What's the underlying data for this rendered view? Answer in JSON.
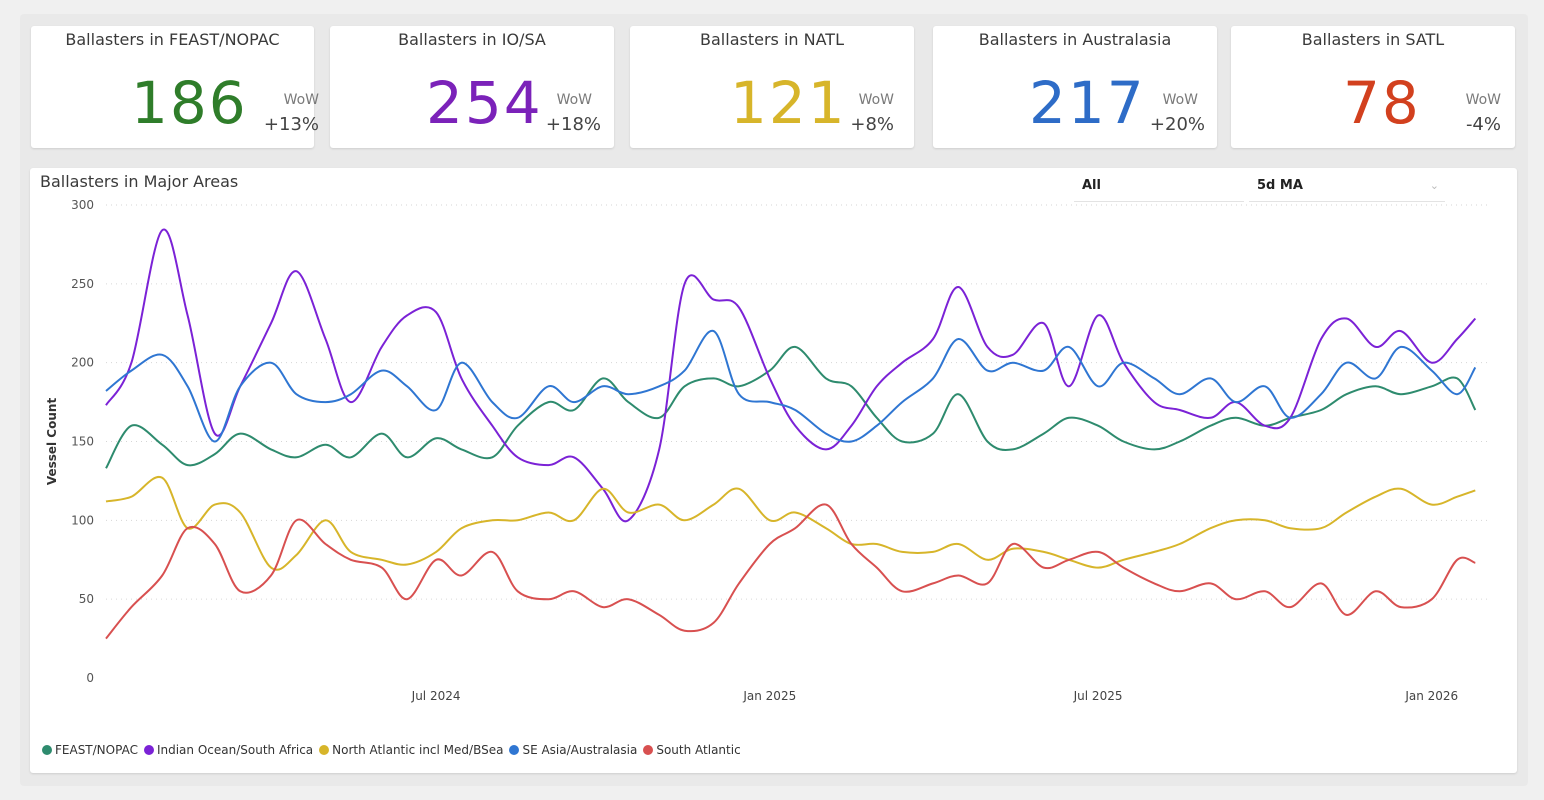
{
  "cards": [
    {
      "title": "Ballasters in FEAST/NOPAC",
      "value": "186",
      "wow_label": "WoW",
      "wow": "+13%",
      "color": "#2f7d2a"
    },
    {
      "title": "Ballasters in IO/SA",
      "value": "254",
      "wow_label": "WoW",
      "wow": "+18%",
      "color": "#7b22b9"
    },
    {
      "title": "Ballasters in NATL",
      "value": "121",
      "wow_label": "WoW",
      "wow": "+8%",
      "color": "#d7b52a"
    },
    {
      "title": "Ballasters in Australasia",
      "value": "217",
      "wow_label": "WoW",
      "wow": "+20%",
      "color": "#2e6cc7"
    },
    {
      "title": "Ballasters in SATL",
      "value": "78",
      "wow_label": "WoW",
      "wow": "-4%",
      "color": "#d2401e"
    }
  ],
  "chart_panel": {
    "title": "Ballasters in Major Areas",
    "slicer_region": "All",
    "slicer_smoothing": "5d MA"
  },
  "chart_data": {
    "type": "line",
    "title": "Ballasters in Major Areas",
    "xlabel": "",
    "ylabel": "Vessel Count",
    "ylim": [
      0,
      300
    ],
    "yticks": [
      0,
      50,
      100,
      150,
      200,
      250,
      300
    ],
    "xlim": [
      "2024-01-01",
      "2026-02-01"
    ],
    "xticks": [
      {
        "date": "2024-07-01",
        "label": "Jul 2024"
      },
      {
        "date": "2025-01-01",
        "label": "Jan 2025"
      },
      {
        "date": "2025-07-01",
        "label": "Jul 2025"
      },
      {
        "date": "2026-01-01",
        "label": "Jan 2026"
      }
    ],
    "grid": "horizontal-dotted",
    "legend_position": "bottom-left",
    "x": [
      "2024-01-01",
      "2024-01-15",
      "2024-02-01",
      "2024-02-15",
      "2024-03-01",
      "2024-03-15",
      "2024-04-01",
      "2024-04-15",
      "2024-05-01",
      "2024-05-15",
      "2024-06-01",
      "2024-06-15",
      "2024-07-01",
      "2024-07-15",
      "2024-08-01",
      "2024-08-15",
      "2024-09-01",
      "2024-09-15",
      "2024-10-01",
      "2024-10-15",
      "2024-11-01",
      "2024-11-15",
      "2024-12-01",
      "2024-12-15",
      "2025-01-01",
      "2025-01-15",
      "2025-02-01",
      "2025-02-15",
      "2025-03-01",
      "2025-03-15",
      "2025-04-01",
      "2025-04-15",
      "2025-05-01",
      "2025-05-15",
      "2025-06-01",
      "2025-06-15",
      "2025-07-01",
      "2025-07-15",
      "2025-08-01",
      "2025-08-15",
      "2025-09-01",
      "2025-09-15",
      "2025-10-01",
      "2025-10-15",
      "2025-11-01",
      "2025-11-15",
      "2025-12-01",
      "2025-12-15",
      "2026-01-01",
      "2026-01-15",
      "2026-01-25"
    ],
    "series": [
      {
        "name": "FEAST/NOPAC",
        "color": "#2e8b6e",
        "values": [
          133,
          160,
          148,
          135,
          142,
          155,
          145,
          140,
          148,
          140,
          155,
          140,
          152,
          145,
          140,
          160,
          175,
          170,
          190,
          175,
          165,
          185,
          190,
          185,
          195,
          210,
          190,
          185,
          165,
          150,
          155,
          180,
          150,
          145,
          155,
          165,
          160,
          150,
          145,
          150,
          160,
          165,
          160,
          165,
          170,
          180,
          185,
          180,
          185,
          190,
          170
        ]
      },
      {
        "name": "Indian Ocean/South Africa",
        "color": "#7b22d6",
        "values": [
          173,
          200,
          284,
          230,
          155,
          185,
          225,
          258,
          215,
          175,
          210,
          230,
          232,
          190,
          160,
          140,
          135,
          140,
          120,
          100,
          145,
          250,
          240,
          235,
          190,
          160,
          145,
          160,
          185,
          200,
          215,
          248,
          210,
          205,
          225,
          185,
          230,
          200,
          175,
          170,
          165,
          175,
          160,
          165,
          215,
          228,
          210,
          220,
          200,
          215,
          228
        ]
      },
      {
        "name": "North Atlantic incl Med/BSea",
        "color": "#d7b52a",
        "values": [
          112,
          115,
          127,
          95,
          110,
          105,
          70,
          78,
          100,
          80,
          75,
          72,
          80,
          95,
          100,
          100,
          105,
          100,
          120,
          105,
          110,
          100,
          110,
          120,
          100,
          105,
          95,
          85,
          85,
          80,
          80,
          85,
          75,
          82,
          80,
          75,
          70,
          75,
          80,
          85,
          95,
          100,
          100,
          95,
          95,
          105,
          115,
          120,
          110,
          115,
          119
        ]
      },
      {
        "name": "SE Asia/Australasia",
        "color": "#2f76d2",
        "values": [
          182,
          195,
          205,
          185,
          150,
          185,
          200,
          180,
          175,
          180,
          195,
          185,
          170,
          200,
          175,
          165,
          185,
          175,
          185,
          180,
          185,
          195,
          220,
          180,
          175,
          170,
          155,
          150,
          160,
          175,
          190,
          215,
          195,
          200,
          195,
          210,
          185,
          200,
          190,
          180,
          190,
          175,
          185,
          165,
          180,
          200,
          190,
          210,
          195,
          180,
          197
        ]
      },
      {
        "name": "South Atlantic",
        "color": "#d85050",
        "values": [
          25,
          45,
          65,
          95,
          85,
          55,
          65,
          100,
          85,
          75,
          70,
          50,
          75,
          65,
          80,
          55,
          50,
          55,
          45,
          50,
          40,
          30,
          35,
          60,
          85,
          95,
          110,
          85,
          70,
          55,
          60,
          65,
          60,
          85,
          70,
          75,
          80,
          70,
          60,
          55,
          60,
          50,
          55,
          45,
          60,
          40,
          55,
          45,
          50,
          75,
          73
        ]
      }
    ]
  }
}
